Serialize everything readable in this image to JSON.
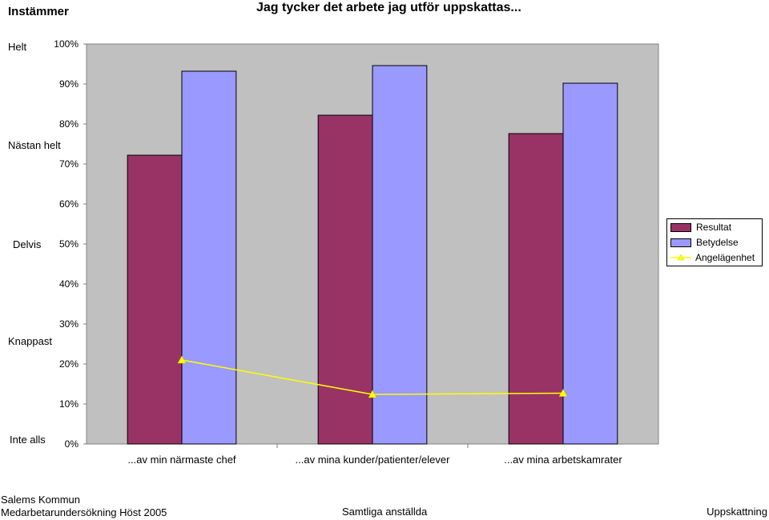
{
  "header": {
    "corner_label": "Instämmer",
    "title": "Jag tycker det arbete jag utför uppskattas..."
  },
  "scale_labels": [
    "Helt",
    "Nästan helt",
    "Delvis",
    "Knappast",
    "Inte alls"
  ],
  "chart_data": {
    "type": "bar",
    "title": "Jag tycker det arbete jag utför uppskattas...",
    "categories": [
      "...av min närmaste chef",
      "...av mina kunder/patienter/elever",
      "...av mina arbetskamrater"
    ],
    "series": [
      {
        "name": "Resultat",
        "type": "bar",
        "color": "#993366",
        "values": [
          72.2,
          82.2,
          77.6
        ]
      },
      {
        "name": "Betydelse",
        "type": "bar",
        "color": "#9999ff",
        "values": [
          93.2,
          94.6,
          90.2
        ]
      },
      {
        "name": "Angelägenhet",
        "type": "line",
        "color": "#ffff00",
        "marker": "triangle",
        "values": [
          21.0,
          12.4,
          12.7
        ]
      }
    ],
    "ylim": [
      0,
      100
    ],
    "yticks": [
      0,
      10,
      20,
      30,
      40,
      50,
      60,
      70,
      80,
      90,
      100
    ],
    "ytick_labels": [
      "0%",
      "10%",
      "20%",
      "30%",
      "40%",
      "50%",
      "60%",
      "70%",
      "80%",
      "90%",
      "100%"
    ],
    "plot_background": "#c0c0c0",
    "gridlines": false,
    "legend_position": "right"
  },
  "legend": {
    "items": [
      "Resultat",
      "Betydelse",
      "Angelägenhet"
    ]
  },
  "footer": {
    "org": "Salems Kommun",
    "survey": "Medarbetarundersökning Höst 2005",
    "group": "Samtliga anställda",
    "section": "Uppskattning"
  }
}
